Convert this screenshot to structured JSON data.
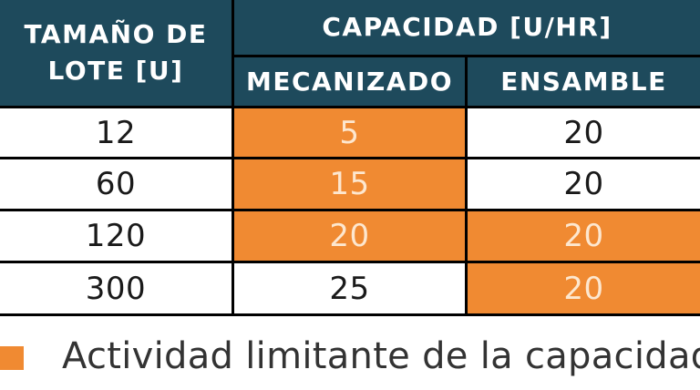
{
  "table": {
    "header": {
      "lot_size": "TAMAÑO DE\nLOTE [U]",
      "capacity": "CAPACIDAD [U/HR]",
      "machining": "MECANIZADO",
      "assembly": "ENSAMBLE"
    },
    "rows": [
      {
        "lot": "12",
        "machining": "5",
        "assembly": "20",
        "machining_limiting": true,
        "assembly_limiting": false
      },
      {
        "lot": "60",
        "machining": "15",
        "assembly": "20",
        "machining_limiting": true,
        "assembly_limiting": false
      },
      {
        "lot": "120",
        "machining": "20",
        "assembly": "20",
        "machining_limiting": true,
        "assembly_limiting": true
      },
      {
        "lot": "300",
        "machining": "25",
        "assembly": "20",
        "machining_limiting": false,
        "assembly_limiting": true
      }
    ]
  },
  "legend": {
    "label": "Actividad limitante de la capacidad",
    "color": "#f08a32"
  },
  "colors": {
    "header_bg": "#1e4a5c",
    "limiting_bg": "#f08a32"
  }
}
